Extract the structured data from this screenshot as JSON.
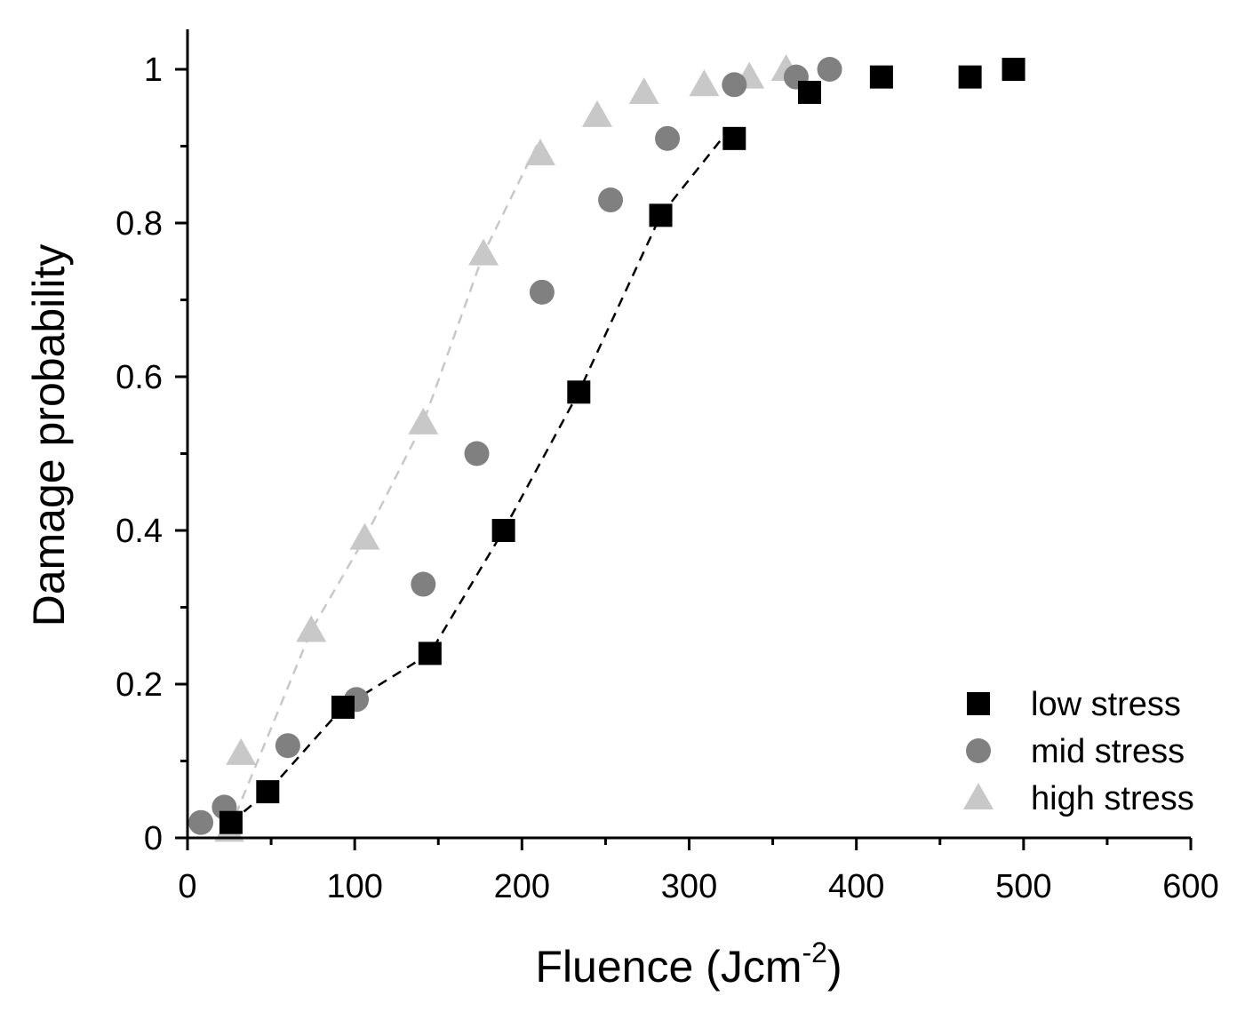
{
  "chart_data": {
    "type": "scatter",
    "xlabel": "Fluence (Jcm",
    "xlabel_sup": "-2",
    "xlabel_close": ")",
    "ylabel": "Damage probability",
    "xlim": [
      0,
      600
    ],
    "ylim": [
      0,
      1.05
    ],
    "xticks": [
      0,
      100,
      200,
      300,
      400,
      500,
      600
    ],
    "xtick_labels": [
      "0",
      "100",
      "200",
      "300",
      "400",
      "500",
      "600"
    ],
    "yticks": [
      0,
      0.2,
      0.4,
      0.6,
      0.8,
      1
    ],
    "ytick_labels": [
      "0",
      "0.2",
      "0.4",
      "0.6",
      "0.8",
      "1"
    ],
    "legend_position": "bottom-right",
    "series": [
      {
        "name": "low stress",
        "marker": "square",
        "color": "#000000",
        "x": [
          26,
          48,
          93,
          145,
          189,
          234,
          283,
          327,
          372,
          415,
          468,
          494
        ],
        "y": [
          0.02,
          0.06,
          0.17,
          0.24,
          0.4,
          0.58,
          0.81,
          0.91,
          0.97,
          0.99,
          0.99,
          1.0
        ],
        "fit_line": {
          "color": "#000000",
          "x": [
            26,
            48,
            93,
            145,
            189,
            234,
            283,
            327
          ],
          "y": [
            0.02,
            0.06,
            0.17,
            0.24,
            0.4,
            0.58,
            0.81,
            0.93
          ]
        }
      },
      {
        "name": "mid stress",
        "marker": "circle",
        "color": "#808080",
        "x": [
          8,
          22,
          60,
          101,
          141,
          173,
          212,
          253,
          287,
          327,
          364,
          384
        ],
        "y": [
          0.02,
          0.04,
          0.12,
          0.18,
          0.33,
          0.5,
          0.71,
          0.83,
          0.91,
          0.98,
          0.99,
          1.0
        ]
      },
      {
        "name": "high stress",
        "marker": "triangle",
        "color": "#c8c8c8",
        "x": [
          25,
          32,
          74,
          106,
          141,
          177,
          211,
          245,
          273,
          309,
          336,
          358
        ],
        "y": [
          0.01,
          0.11,
          0.27,
          0.39,
          0.54,
          0.76,
          0.89,
          0.94,
          0.97,
          0.98,
          0.99,
          1.0
        ],
        "fit_line": {
          "color": "#c8c8c8",
          "x": [
            25,
            74,
            106,
            141,
            177,
            211
          ],
          "y": [
            0.01,
            0.27,
            0.39,
            0.54,
            0.76,
            0.91
          ]
        }
      }
    ]
  }
}
